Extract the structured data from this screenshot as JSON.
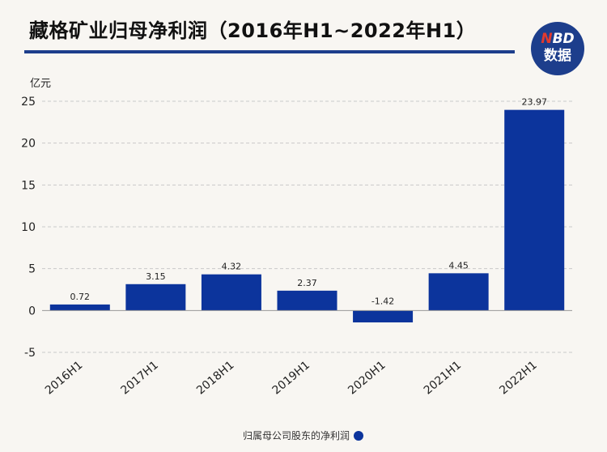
{
  "title": "藏格矿业归母净利润（2016年H1~2022年H1）",
  "logo": {
    "line1_accent": "N",
    "line1_rest": "BD",
    "line2": "数据"
  },
  "unit_label": "亿元",
  "colors": {
    "bar": "#0c349c",
    "title_rule": "#1d3e8c",
    "grid": "#c9c9c9",
    "axis": "#999999"
  },
  "chart_data": {
    "type": "bar",
    "categories": [
      "2016H1",
      "2017H1",
      "2018H1",
      "2019H1",
      "2020H1",
      "2021H1",
      "2022H1"
    ],
    "series": [
      {
        "name": "归属母公司股东的净利润",
        "values": [
          0.72,
          3.15,
          4.32,
          2.37,
          -1.42,
          4.45,
          23.97
        ]
      }
    ],
    "data_labels": [
      "0.72",
      "3.15",
      "4.32",
      "2.37",
      "-1.42",
      "4.45",
      "23.97"
    ],
    "ylim": [
      -5,
      25
    ],
    "yticks": [
      -5,
      0,
      5,
      10,
      15,
      20,
      25
    ],
    "ytick_labels": [
      "-5",
      "0",
      "5",
      "10",
      "15",
      "20",
      "25"
    ],
    "grid": true,
    "legend_position": "bottom-center"
  },
  "legend": {
    "label": "归属母公司股东的净利润"
  }
}
